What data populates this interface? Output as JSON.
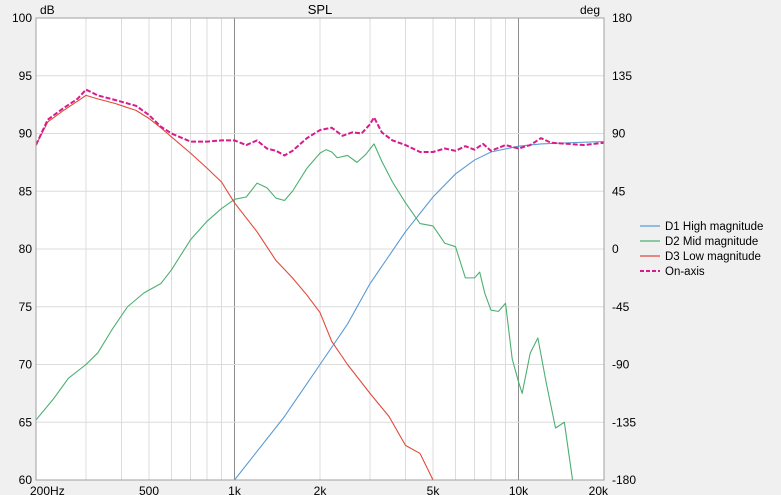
{
  "chart_data": {
    "type": "line",
    "title": "SPL",
    "left_unit": "dB",
    "right_unit": "deg",
    "x_scale": "log",
    "xlim": [
      200,
      20000
    ],
    "ylim": [
      60,
      100
    ],
    "y2lim": [
      -180,
      180
    ],
    "x_ticks": [
      {
        "value": 200,
        "label": "200Hz"
      },
      {
        "value": 500,
        "label": "500"
      },
      {
        "value": 1000,
        "label": "1k"
      },
      {
        "value": 2000,
        "label": "2k"
      },
      {
        "value": 5000,
        "label": "5k"
      },
      {
        "value": 10000,
        "label": "10k"
      },
      {
        "value": 20000,
        "label": "20k"
      }
    ],
    "y_ticks": [
      "60",
      "65",
      "70",
      "75",
      "80",
      "85",
      "90",
      "95",
      "100"
    ],
    "y2_ticks": [
      "-180",
      "-135",
      "-90",
      "-45",
      "0",
      "45",
      "90",
      "135",
      "180"
    ],
    "grid": true,
    "legend_position": "right",
    "series": [
      {
        "name": "D1 High magnitude",
        "color": "#5b9bd5",
        "style": "solid",
        "points": [
          [
            1000,
            60
          ],
          [
            1500,
            65.5
          ],
          [
            2000,
            70
          ],
          [
            2500,
            73.5
          ],
          [
            3000,
            77
          ],
          [
            4000,
            81.5
          ],
          [
            5000,
            84.5
          ],
          [
            6000,
            86.5
          ],
          [
            7000,
            87.7
          ],
          [
            8000,
            88.4
          ],
          [
            10000,
            88.9
          ],
          [
            12000,
            89.1
          ],
          [
            15000,
            89.2
          ],
          [
            20000,
            89.3
          ]
        ]
      },
      {
        "name": "D2 Mid magnitude",
        "color": "#4caf72",
        "style": "solid",
        "points": [
          [
            200,
            65.2
          ],
          [
            230,
            67
          ],
          [
            260,
            68.8
          ],
          [
            300,
            70
          ],
          [
            330,
            71
          ],
          [
            370,
            73
          ],
          [
            420,
            75
          ],
          [
            480,
            76.2
          ],
          [
            550,
            77
          ],
          [
            600,
            78.2
          ],
          [
            700,
            80.8
          ],
          [
            800,
            82.4
          ],
          [
            900,
            83.5
          ],
          [
            1000,
            84.3
          ],
          [
            1100,
            84.5
          ],
          [
            1200,
            85.7
          ],
          [
            1300,
            85.3
          ],
          [
            1400,
            84.4
          ],
          [
            1500,
            84.2
          ],
          [
            1600,
            85
          ],
          [
            1800,
            87
          ],
          [
            2000,
            88.3
          ],
          [
            2100,
            88.6
          ],
          [
            2200,
            88.4
          ],
          [
            2300,
            87.9
          ],
          [
            2500,
            88.1
          ],
          [
            2700,
            87.5
          ],
          [
            2900,
            88.2
          ],
          [
            3100,
            89.1
          ],
          [
            3300,
            87.6
          ],
          [
            3600,
            85.8
          ],
          [
            4000,
            84
          ],
          [
            4500,
            82.2
          ],
          [
            5000,
            82
          ],
          [
            5500,
            80.5
          ],
          [
            6000,
            80.2
          ],
          [
            6500,
            77.5
          ],
          [
            7000,
            77.5
          ],
          [
            7300,
            78
          ],
          [
            7600,
            76.2
          ],
          [
            8000,
            74.7
          ],
          [
            8500,
            74.6
          ],
          [
            9000,
            75.3
          ],
          [
            9500,
            70.5
          ],
          [
            10000,
            68.5
          ],
          [
            10300,
            67.5
          ],
          [
            11000,
            71
          ],
          [
            11700,
            72.3
          ],
          [
            12500,
            68.5
          ],
          [
            13500,
            64.5
          ],
          [
            14500,
            65
          ],
          [
            15500,
            60
          ]
        ]
      },
      {
        "name": "D3 Low magnitude",
        "color": "#e04a3a",
        "style": "solid",
        "points": [
          [
            200,
            89
          ],
          [
            220,
            91
          ],
          [
            250,
            92
          ],
          [
            280,
            92.8
          ],
          [
            300,
            93.3
          ],
          [
            330,
            93
          ],
          [
            380,
            92.6
          ],
          [
            450,
            92
          ],
          [
            500,
            91.3
          ],
          [
            550,
            90.5
          ],
          [
            600,
            89.7
          ],
          [
            700,
            88.3
          ],
          [
            800,
            87
          ],
          [
            900,
            85.8
          ],
          [
            1000,
            84
          ],
          [
            1200,
            81.5
          ],
          [
            1400,
            79
          ],
          [
            1600,
            77.5
          ],
          [
            1800,
            76
          ],
          [
            2000,
            74.5
          ],
          [
            2200,
            72
          ],
          [
            2500,
            70
          ],
          [
            3000,
            67.5
          ],
          [
            3500,
            65.5
          ],
          [
            4000,
            63
          ],
          [
            4500,
            62.3
          ],
          [
            5000,
            60
          ]
        ]
      },
      {
        "name": "On-axis",
        "color": "#d81b8c",
        "style": "dashed",
        "points": [
          [
            200,
            89
          ],
          [
            220,
            91.2
          ],
          [
            250,
            92.2
          ],
          [
            280,
            93
          ],
          [
            300,
            93.8
          ],
          [
            330,
            93.3
          ],
          [
            380,
            92.9
          ],
          [
            450,
            92.4
          ],
          [
            500,
            91.6
          ],
          [
            550,
            90.6
          ],
          [
            600,
            90
          ],
          [
            700,
            89.3
          ],
          [
            800,
            89.3
          ],
          [
            900,
            89.4
          ],
          [
            1000,
            89.4
          ],
          [
            1100,
            89
          ],
          [
            1200,
            89.4
          ],
          [
            1300,
            88.7
          ],
          [
            1400,
            88.5
          ],
          [
            1500,
            88.1
          ],
          [
            1600,
            88.5
          ],
          [
            1800,
            89.6
          ],
          [
            2000,
            90.3
          ],
          [
            2200,
            90.5
          ],
          [
            2400,
            89.8
          ],
          [
            2600,
            90.1
          ],
          [
            2800,
            90
          ],
          [
            3000,
            90.8
          ],
          [
            3100,
            91.4
          ],
          [
            3300,
            90.1
          ],
          [
            3600,
            89.4
          ],
          [
            4000,
            89
          ],
          [
            4500,
            88.4
          ],
          [
            5000,
            88.4
          ],
          [
            5500,
            88.7
          ],
          [
            6000,
            88.5
          ],
          [
            6500,
            88.9
          ],
          [
            7000,
            88.6
          ],
          [
            7500,
            89.1
          ],
          [
            8000,
            88.5
          ],
          [
            9000,
            89
          ],
          [
            10000,
            88.7
          ],
          [
            11000,
            89
          ],
          [
            12000,
            89.6
          ],
          [
            13000,
            89.2
          ],
          [
            15000,
            89.1
          ],
          [
            17000,
            89
          ],
          [
            20000,
            89.2
          ]
        ]
      }
    ]
  }
}
